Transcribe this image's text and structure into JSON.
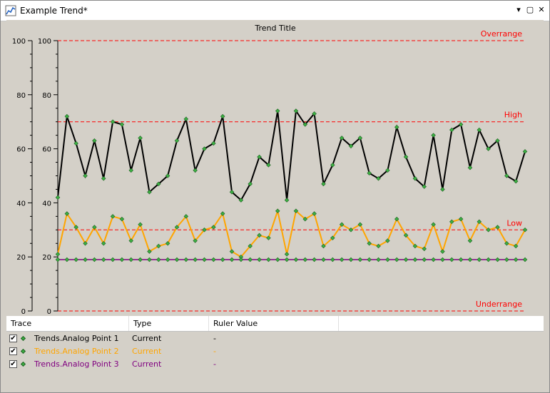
{
  "window": {
    "title": "Example Trend*",
    "icon": "trend-chart-icon",
    "controls": {
      "dropdown": "▾",
      "restore": "▢",
      "close": "✕"
    }
  },
  "chart_data": {
    "type": "line",
    "title": "Trend Title",
    "ylim": [
      0,
      100
    ],
    "left_axis_ticks": [
      "100",
      "80",
      "60",
      "40",
      "20",
      "0"
    ],
    "right_axis_ticks": [
      "100",
      "80",
      "60",
      "40",
      "20",
      "0"
    ],
    "reference_lines": [
      {
        "label": "Overrange",
        "value": 100,
        "color": "#ff0000"
      },
      {
        "label": "High",
        "value": 70,
        "color": "#ff0000"
      },
      {
        "label": "Low",
        "value": 30,
        "color": "#ff0000"
      },
      {
        "label": "Underrange",
        "value": 0,
        "color": "#ff0000"
      }
    ],
    "marker_color": "#3cb043",
    "series": [
      {
        "name": "Trends.Analog Point 1",
        "color": "#000000",
        "values": [
          42,
          72,
          62,
          50,
          63,
          49,
          70,
          69,
          52,
          64,
          44,
          47,
          50,
          63,
          71,
          52,
          60,
          62,
          72,
          44,
          41,
          47,
          57,
          54,
          74,
          41,
          74,
          69,
          73,
          47,
          54,
          64,
          61,
          64,
          51,
          49,
          52,
          68,
          57,
          49,
          46,
          65,
          45,
          67,
          69,
          53,
          67,
          60,
          63,
          50,
          48,
          59
        ]
      },
      {
        "name": "Trends.Analog Point 2",
        "color": "#ffa500",
        "values": [
          21,
          36,
          31,
          25,
          31,
          25,
          35,
          34,
          26,
          32,
          22,
          24,
          25,
          31,
          35,
          26,
          30,
          31,
          36,
          22,
          20,
          24,
          28,
          27,
          37,
          21,
          37,
          34,
          36,
          24,
          27,
          32,
          30,
          32,
          25,
          24,
          26,
          34,
          28,
          24,
          23,
          32,
          22,
          33,
          34,
          26,
          33,
          30,
          31,
          25,
          24,
          30
        ]
      },
      {
        "name": "Trends.Analog Point 3",
        "color": "#800080",
        "values": [
          19,
          19,
          19,
          19,
          19,
          19,
          19,
          19,
          19,
          19,
          19,
          19,
          19,
          19,
          19,
          19,
          19,
          19,
          19,
          19,
          19,
          19,
          19,
          19,
          19,
          19,
          19,
          19,
          19,
          19,
          19,
          19,
          19,
          19,
          19,
          19,
          19,
          19,
          19,
          19,
          19,
          19,
          19,
          19,
          19,
          19,
          19,
          19,
          19,
          19,
          19,
          19
        ]
      }
    ]
  },
  "legend": {
    "headers": {
      "trace": "Trace",
      "type": "Type",
      "ruler": "Ruler Value"
    },
    "rows": [
      {
        "checked": "✔",
        "trace": "Trends.Analog Point 1",
        "type": "Current",
        "ruler": "-",
        "color": "#000000"
      },
      {
        "checked": "✔",
        "trace": "Trends.Analog Point 2",
        "type": "Current",
        "ruler": "-",
        "color": "#ffa500"
      },
      {
        "checked": "✔",
        "trace": "Trends.Analog Point 3",
        "type": "Current",
        "ruler": "-",
        "color": "#800080"
      }
    ]
  }
}
